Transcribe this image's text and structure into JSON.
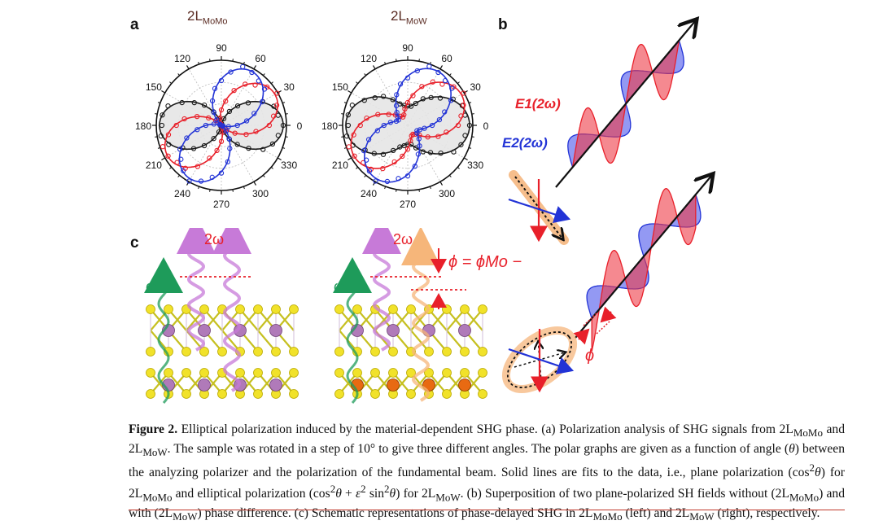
{
  "panels": {
    "a": "a",
    "b": "b",
    "c": "c"
  },
  "polar_titles": [
    {
      "base": "2L",
      "sub": "MoMo"
    },
    {
      "base": "2L",
      "sub": "MoW"
    }
  ],
  "polar_ticks": [
    "0",
    "30",
    "60",
    "90",
    "120",
    "150",
    "180",
    "210",
    "240",
    "270",
    "300",
    "330"
  ],
  "colors": {
    "black_series": "#1a1a1a",
    "red_series": "#e8202a",
    "blue_series": "#2233d6",
    "fill": "#e6e6e6"
  },
  "chart_data": [
    {
      "type": "polar",
      "title": "2LMoMo",
      "theta_unit": "degrees",
      "series": [
        {
          "color": "black",
          "model": "cos^2(theta - 0)"
        },
        {
          "color": "red",
          "model": "cos^2(theta - 30)"
        },
        {
          "color": "blue",
          "model": "cos^2(theta - 60)"
        }
      ]
    },
    {
      "type": "polar",
      "title": "2LMoW",
      "theta_unit": "degrees",
      "series": [
        {
          "color": "black",
          "model": "cos^2(theta - 0) + e^2 sin^2(theta - 0)",
          "epsilon": 0.55
        },
        {
          "color": "red",
          "model": "cos^2(theta - 30) + e^2 sin^2(theta - 30)",
          "epsilon": 0.4
        },
        {
          "color": "blue",
          "model": "cos^2(theta - 60) + e^2 sin^2(theta - 60)",
          "epsilon": 0.42
        }
      ]
    }
  ],
  "panel_b": {
    "e1_label": "E1(2ω)",
    "e2_label": "E2(2ω)",
    "phi_label": "ϕ"
  },
  "panel_c": {
    "omega_label": "ω",
    "two_omega_label": "2ω",
    "phase_equation": "ϕ = ϕMo − ϕW"
  },
  "caption_html": "<b>Figure 2.</b> Elliptical polarization induced by the material-dependent SHG phase. (a) Polarization analysis of SHG signals from 2L<sub>MoMo</sub> and 2L<sub>MoW</sub>. The sample was rotated in a step of 10° to give three different angles. The polar graphs are given as a function of angle (<i>θ</i>) between the analyzing polarizer and the polarization of the fundamental beam. Solid lines are fits to the data, i.e., plane polarization (cos<sup>2</sup><i>θ</i>) for 2L<sub>MoMo</sub> and elliptical polarization (cos<sup>2</sup><i>θ</i> + <i>ε</i><sup>2</sup> sin<sup>2</sup><i>θ</i>) for 2L<sub>MoW</sub>. (b) Superposition of two plane-polarized SH fields without (2L<sub>MoMo</sub>) and with (2L<sub>MoW</sub>) phase difference. (c) Schematic representations of phase-delayed SHG in 2L<sub>MoMo</sub> (left) and 2L<sub>MoW</sub> (right), respectively."
}
